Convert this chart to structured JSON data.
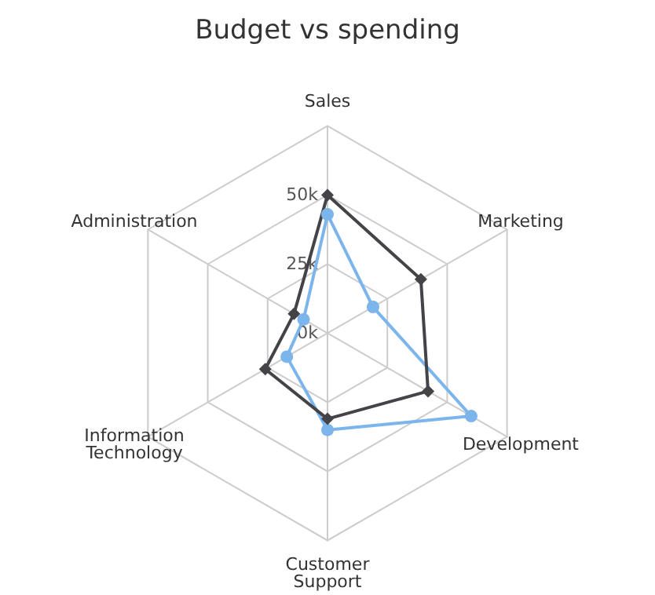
{
  "chart_data": {
    "type": "radar",
    "title": "Budget vs spending",
    "categories": [
      "Sales",
      "Marketing",
      "Development",
      "Customer Support",
      "Information Technology",
      "Administration"
    ],
    "series": [
      {
        "color": "#7cb5ec",
        "marker": "circle",
        "values": [
          43000,
          19000,
          60000,
          35000,
          17000,
          10000
        ]
      },
      {
        "color": "#434348",
        "marker": "diamond",
        "values": [
          50000,
          39000,
          42000,
          31000,
          26000,
          14000
        ]
      }
    ],
    "ylim": [
      0,
      75000
    ],
    "yticks": [
      {
        "value": 0,
        "label": "0k"
      },
      {
        "value": 25000,
        "label": "25k"
      },
      {
        "value": 50000,
        "label": "50k"
      }
    ],
    "grid": true
  }
}
